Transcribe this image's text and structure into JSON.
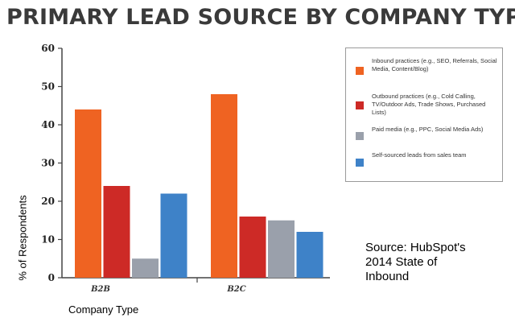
{
  "chart_data": {
    "type": "bar",
    "title": "PRIMARY LEAD SOURCE BY COMPANY TYPE",
    "xlabel": "Company Type",
    "ylabel": "% of Respondents",
    "categories": [
      "B2B",
      "B2C"
    ],
    "yticks": [
      "0",
      "10",
      "20",
      "30",
      "40",
      "50",
      "60"
    ],
    "ylim": [
      0,
      60
    ],
    "grid": false,
    "legend_position": "top-right",
    "series": [
      {
        "name": "Inbound practices (e.g., SEO, Referrals, Social Media, Content/Blog)",
        "color": "#ef6322",
        "values": [
          44,
          48
        ]
      },
      {
        "name": "Outbound practices (e.g., Cold Calling, TV/Outdoor Ads, Trade Shows, Purchased Lists)",
        "color": "#cd2a26",
        "values": [
          24,
          16
        ]
      },
      {
        "name": "Paid media (e.g., PPC, Social Media Ads)",
        "color": "#9aa0ab",
        "values": [
          5,
          15
        ]
      },
      {
        "name": "Self-sourced leads from sales team",
        "color": "#3e82c8",
        "values": [
          22,
          12
        ]
      }
    ],
    "source_note": "Source: HubSpot's\n2014 State of\nInbound"
  }
}
